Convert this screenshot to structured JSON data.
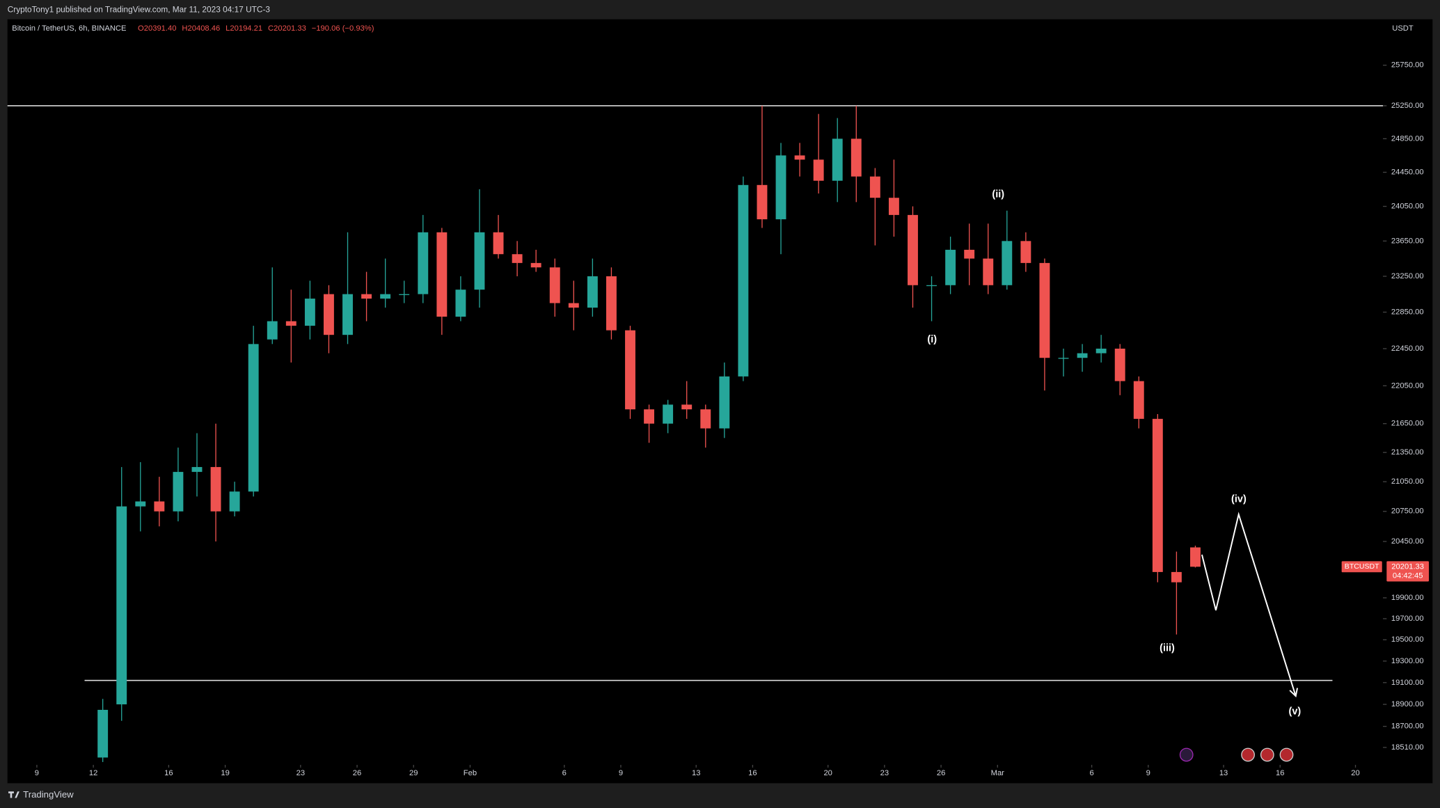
{
  "header": {
    "publisher": "CryptoTony1 published on TradingView.com, Mar 11, 2023 04:17 UTC-3",
    "brand": "TradingView"
  },
  "chart_data": {
    "type": "candlestick",
    "symbol": "Bitcoin / TetherUS, 6h, BINANCE",
    "ohlc_text": [
      "O20391.40",
      "H20408.46",
      "L20194.21",
      "C20201.33",
      "−190.06 (−0.93%)"
    ],
    "currency": "USDT",
    "x": [
      11.5,
      12.5,
      13.5,
      14.5,
      15.5,
      16.5,
      17.5,
      18.5,
      19.5,
      20.5,
      21.5,
      22.5,
      23.5,
      24.5,
      25.5,
      26.5,
      27.5,
      28.5,
      29.5,
      30.5,
      31.5,
      32.5,
      33.5,
      34.5,
      35.5,
      36.5,
      37.5,
      38.5,
      39.5,
      40.5,
      41.5,
      42.5,
      43.5,
      44.5,
      45.5,
      46.5,
      47.5,
      48.5,
      49.5,
      50.5,
      51.5,
      52.5,
      53.5,
      54.5,
      55.5,
      56.5,
      57.5,
      58.5,
      59.5,
      60.5,
      61.5,
      62.5,
      63.5,
      64.5,
      65.5,
      66.5,
      67.5,
      68.5,
      69.5
    ],
    "open": [
      18420,
      18900,
      20800,
      20850,
      20750,
      21150,
      21200,
      20750,
      20950,
      22550,
      22750,
      22700,
      23050,
      22600,
      23050,
      23000,
      23050,
      23050,
      23750,
      22800,
      23100,
      23750,
      23500,
      23400,
      23350,
      22950,
      22900,
      23250,
      22650,
      21800,
      21650,
      21850,
      21800,
      21600,
      22150,
      24300,
      23900,
      24650,
      24600,
      24350,
      24850,
      24400,
      24150,
      23950,
      23150,
      23150,
      23550,
      23450,
      23150,
      23650,
      23400,
      22350,
      22350,
      22400,
      22450,
      22100,
      21700,
      20150,
      20391.4
    ],
    "high": [
      18950,
      21200,
      21250,
      21100,
      21400,
      21550,
      21650,
      21050,
      22700,
      23350,
      23100,
      23200,
      23150,
      23750,
      23300,
      23450,
      23200,
      23950,
      23800,
      23250,
      24250,
      23950,
      23650,
      23550,
      23450,
      23200,
      23450,
      23350,
      22700,
      21850,
      21900,
      22100,
      21850,
      22300,
      24400,
      25250,
      24800,
      24800,
      25150,
      25100,
      25250,
      24500,
      24600,
      24050,
      23250,
      23700,
      23850,
      23850,
      24000,
      23750,
      23450,
      22450,
      22500,
      22600,
      22500,
      22150,
      21750,
      20350,
      20408.46
    ],
    "low": [
      18380,
      18750,
      20550,
      20600,
      20650,
      20900,
      20450,
      20700,
      20900,
      22500,
      22300,
      22550,
      22400,
      22500,
      22750,
      22900,
      22950,
      22950,
      22600,
      22750,
      22900,
      23450,
      23250,
      23300,
      22800,
      22650,
      22800,
      22550,
      21700,
      21450,
      21550,
      21700,
      21400,
      21500,
      22100,
      23800,
      23500,
      24400,
      24200,
      24100,
      24100,
      23600,
      23700,
      22900,
      22750,
      23050,
      23150,
      23050,
      23100,
      23300,
      22000,
      22150,
      22200,
      22300,
      21950,
      21600,
      20050,
      19550,
      20194.21
    ],
    "close": [
      18850,
      20800,
      20850,
      20750,
      21150,
      21200,
      20750,
      20950,
      22500,
      22750,
      22700,
      23000,
      22600,
      23050,
      23000,
      23050,
      23050,
      23750,
      22800,
      23100,
      23750,
      23500,
      23400,
      23350,
      22950,
      22900,
      23250,
      22650,
      21800,
      21650,
      21850,
      21800,
      21600,
      22150,
      24300,
      23900,
      24650,
      24600,
      24350,
      24850,
      24400,
      24150,
      23950,
      23150,
      23150,
      23550,
      23450,
      23150,
      23650,
      23400,
      22350,
      22350,
      22400,
      22450,
      22100,
      21700,
      20150,
      20050,
      20201.33
    ],
    "up_color": "#26a69a",
    "down_color": "#ef5350",
    "log_scale": true,
    "xlim": [
      6.44,
      79.46
    ],
    "xticks": [
      {
        "value": 8,
        "label": "9"
      },
      {
        "value": 11,
        "label": "12"
      },
      {
        "value": 15,
        "label": "16"
      },
      {
        "value": 18,
        "label": "19"
      },
      {
        "value": 22,
        "label": "23"
      },
      {
        "value": 25,
        "label": "26"
      },
      {
        "value": 28,
        "label": "29"
      },
      {
        "value": 31,
        "label": "Feb"
      },
      {
        "value": 36,
        "label": "6"
      },
      {
        "value": 39,
        "label": "9"
      },
      {
        "value": 43,
        "label": "13"
      },
      {
        "value": 46,
        "label": "16"
      },
      {
        "value": 50,
        "label": "20"
      },
      {
        "value": 53,
        "label": "23"
      },
      {
        "value": 56,
        "label": "26"
      },
      {
        "value": 59,
        "label": "Mar"
      },
      {
        "value": 64,
        "label": "6"
      },
      {
        "value": 67,
        "label": "9"
      },
      {
        "value": 71,
        "label": "13"
      },
      {
        "value": 74,
        "label": "16"
      },
      {
        "value": 78,
        "label": "20"
      }
    ],
    "ylim": [
      18363,
      26317
    ],
    "yticks": [
      {
        "value": 25750,
        "label": "25750.00"
      },
      {
        "value": 25250,
        "label": "25250.00"
      },
      {
        "value": 24850,
        "label": "24850.00"
      },
      {
        "value": 24450,
        "label": "24450.00"
      },
      {
        "value": 24050,
        "label": "24050.00"
      },
      {
        "value": 23650,
        "label": "23650.00"
      },
      {
        "value": 23250,
        "label": "23250.00"
      },
      {
        "value": 22850,
        "label": "22850.00"
      },
      {
        "value": 22450,
        "label": "22450.00"
      },
      {
        "value": 22050,
        "label": "22050.00"
      },
      {
        "value": 21650,
        "label": "21650.00"
      },
      {
        "value": 21350,
        "label": "21350.00"
      },
      {
        "value": 21050,
        "label": "21050.00"
      },
      {
        "value": 20750,
        "label": "20750.00"
      },
      {
        "value": 20450,
        "label": "20450.00"
      },
      {
        "value": 19900,
        "label": "19900.00"
      },
      {
        "value": 19700,
        "label": "19700.00"
      },
      {
        "value": 19500,
        "label": "19500.00"
      },
      {
        "value": 19300,
        "label": "19300.00"
      },
      {
        "value": 19100,
        "label": "19100.00"
      },
      {
        "value": 18900,
        "label": "18900.00"
      },
      {
        "value": 18700,
        "label": "18700.00"
      },
      {
        "value": 18510,
        "label": "18510.00"
      }
    ],
    "hlines": [
      25250,
      19120
    ],
    "last_price_tag": {
      "symbol": "BTCUSDT",
      "countdown": "04:42:45"
    },
    "wave_labels": [
      "(i)",
      "(ii)",
      "(iii)",
      "(iv)",
      "(v)"
    ],
    "projection": {
      "x": [
        69.85,
        70.59,
        71.8,
        74.83
      ],
      "y": [
        20320,
        19780,
        20720,
        18976
      ]
    }
  }
}
